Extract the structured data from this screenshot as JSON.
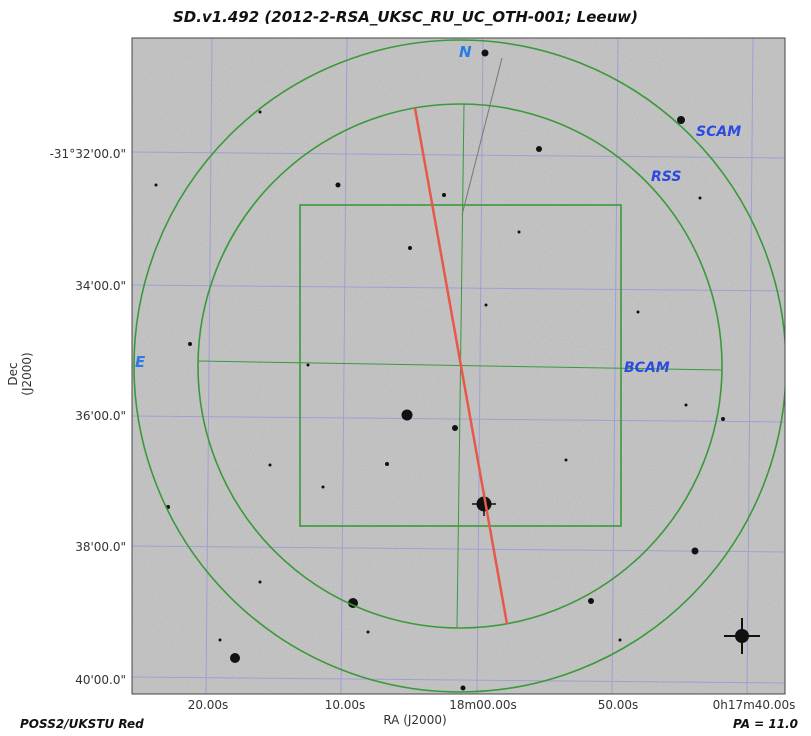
{
  "title": "SD.v1.492 (2012-2-RSA_UKSC_RU_UC_OTH-001; Leeuw)",
  "survey_label": "POSS2/UKSTU Red",
  "position_angle": "PA = 11.0",
  "axes": {
    "xlabel": "RA (J2000)",
    "ylabel": "Dec (J2000)",
    "x_ticks": [
      "20.00s",
      "10.00s",
      "18m00.00s",
      "50.00s",
      "0h17m40.00s"
    ],
    "y_ticks": [
      "-31°32'00.0\"",
      "34'00.0\"",
      "36'00.0\"",
      "38'00.0\"",
      "40'00.0\""
    ]
  },
  "overlay_labels": {
    "north": "N",
    "east": "E",
    "scam": "SCAM",
    "rss": "RSS",
    "bcam": "BCAM"
  },
  "colors": {
    "footprint": "#3a9a3a",
    "slit": "#e8584a",
    "grid": "#9a9ad8",
    "compass": "#2a7ae8",
    "instrument_label": "#2a4ae0",
    "sky_background": "#c9c9c9"
  }
}
